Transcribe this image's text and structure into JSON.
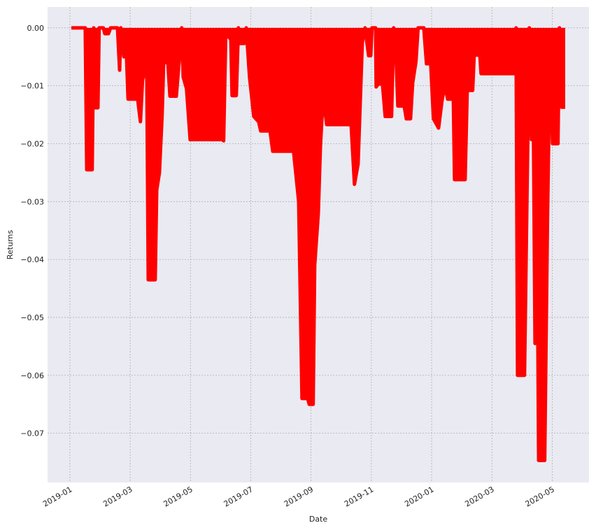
{
  "chart_data": {
    "type": "area",
    "x_label": "Date",
    "y_label": "Returns",
    "color": "#ff0000",
    "grid": true,
    "xlim": [
      -0.74,
      17.22
    ],
    "xticks": [
      {
        "value": 0,
        "label": "2019-01"
      },
      {
        "value": 2,
        "label": "2019-03"
      },
      {
        "value": 4,
        "label": "2019-05"
      },
      {
        "value": 6,
        "label": "2019-07"
      },
      {
        "value": 8,
        "label": "2019-09"
      },
      {
        "value": 10,
        "label": "2019-11"
      },
      {
        "value": 12,
        "label": "2020-01"
      },
      {
        "value": 14,
        "label": "2020-03"
      },
      {
        "value": 16,
        "label": "2020-05"
      }
    ],
    "ylim": [
      -0.0785,
      0.0036
    ],
    "yticks": [
      {
        "value": 0,
        "label": "0.00"
      },
      {
        "value": -0.01,
        "label": "−0.01"
      },
      {
        "value": -0.02,
        "label": "−0.02"
      },
      {
        "value": -0.03,
        "label": "−0.03"
      },
      {
        "value": -0.04,
        "label": "−0.04"
      },
      {
        "value": -0.05,
        "label": "−0.05"
      },
      {
        "value": -0.06,
        "label": "−0.06"
      },
      {
        "value": -0.07,
        "label": "−0.07"
      }
    ],
    "x": [
      0.05,
      0.51,
      0.56,
      0.74,
      0.79,
      0.84,
      0.93,
      0.97,
      1.11,
      1.16,
      1.28,
      1.35,
      1.58,
      1.65,
      1.69,
      1.79,
      1.86,
      1.93,
      2.25,
      2.34,
      2.41,
      2.51,
      2.55,
      2.6,
      2.83,
      2.88,
      2.97,
      3.06,
      3.11,
      3.25,
      3.32,
      3.53,
      3.62,
      3.71,
      3.76,
      3.87,
      3.99,
      5.06,
      5.1,
      5.17,
      5.34,
      5.38,
      5.52,
      5.59,
      5.64,
      5.78,
      5.85,
      5.96,
      6.1,
      6.26,
      6.33,
      6.64,
      6.73,
      7.42,
      7.59,
      7.7,
      7.89,
      7.94,
      8.07,
      8.12,
      8.24,
      8.31,
      8.4,
      8.52,
      9.33,
      9.44,
      9.56,
      9.7,
      9.79,
      9.91,
      9.98,
      10.02,
      10.14,
      10.16,
      10.23,
      10.37,
      10.46,
      10.67,
      10.74,
      10.81,
      10.88,
      11.09,
      11.16,
      11.3,
      11.37,
      11.48,
      11.55,
      11.74,
      11.83,
      11.97,
      12.06,
      12.23,
      12.34,
      12.44,
      12.53,
      12.72,
      12.76,
      13.11,
      13.18,
      13.36,
      13.41,
      13.6,
      13.64,
      14.73,
      14.8,
      14.85,
      15.08,
      15.2,
      15.24,
      15.31,
      15.38,
      15.43,
      15.48,
      15.55,
      15.75,
      15.84,
      15.93,
      16.01,
      16.19,
      16.24,
      16.31,
      16.43
    ],
    "values": [
      0,
      0,
      -0.0245,
      -0.0245,
      0,
      -0.0138,
      -0.0138,
      0,
      0,
      -0.001,
      -0.001,
      0,
      0,
      -0.0073,
      0,
      -0.005,
      -0.002,
      -0.0123,
      -0.0123,
      -0.0162,
      -0.009,
      -0.007,
      -0.0065,
      -0.0435,
      -0.0435,
      -0.028,
      -0.025,
      -0.015,
      -0.006,
      -0.006,
      -0.0118,
      -0.0118,
      -0.006,
      0,
      -0.0085,
      -0.0105,
      -0.0193,
      -0.0193,
      -0.0195,
      -0.001,
      -0.002,
      -0.0117,
      -0.0117,
      0,
      -0.0027,
      -0.0027,
      0,
      -0.0085,
      -0.0153,
      -0.0162,
      -0.0178,
      -0.0178,
      -0.0213,
      -0.0213,
      -0.03,
      -0.064,
      -0.064,
      -0.065,
      -0.065,
      -0.041,
      -0.032,
      -0.0205,
      -0.0118,
      -0.0167,
      -0.0167,
      -0.027,
      -0.0235,
      -0.0025,
      0,
      -0.0048,
      -0.0048,
      0,
      0,
      -0.0102,
      -0.0097,
      -0.0097,
      -0.0153,
      -0.0153,
      0,
      -0.0035,
      -0.0135,
      -0.0135,
      -0.0157,
      -0.0157,
      -0.0095,
      -0.0058,
      0,
      0,
      -0.0062,
      -0.0062,
      -0.0157,
      -0.0173,
      -0.0127,
      -0.0098,
      -0.0123,
      -0.0123,
      -0.0262,
      -0.0262,
      -0.0108,
      -0.0108,
      -0.0047,
      -0.0047,
      -0.0079,
      -0.0079,
      0,
      -0.06,
      -0.06,
      -0.015,
      0,
      -0.0193,
      -0.0193,
      -0.0545,
      -0.02,
      -0.0747,
      -0.0747,
      -0.034,
      -0.0025,
      -0.02,
      -0.02,
      0,
      -0.0137,
      -0.0137
    ]
  }
}
